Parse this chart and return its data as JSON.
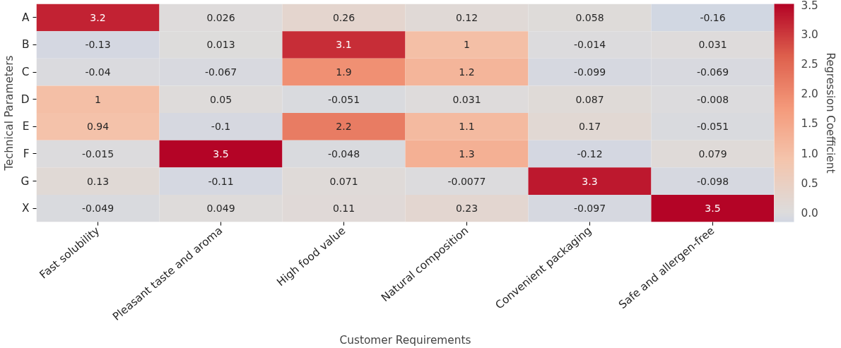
{
  "chart_data": {
    "type": "heatmap",
    "xlabel": "Customer Requirements",
    "ylabel": "Technical Parameters",
    "clabel": "Regression Coefficient",
    "categories": [
      "Fast solubility",
      "Pleasant taste and aroma",
      "High food value",
      "Natural composition",
      "Convenient packaging",
      "Safe and allergen-free"
    ],
    "y_categories": [
      "A",
      "B",
      "C",
      "D",
      "E",
      "F",
      "G",
      "X"
    ],
    "cells": [
      [
        3.2,
        0.026,
        0.26,
        0.12,
        0.058,
        -0.16
      ],
      [
        -0.13,
        0.013,
        3.1,
        1,
        -0.014,
        0.031
      ],
      [
        -0.04,
        -0.067,
        1.9,
        1.2,
        -0.099,
        -0.069
      ],
      [
        1,
        0.05,
        -0.051,
        0.031,
        0.087,
        -0.008
      ],
      [
        0.94,
        -0.1,
        2.2,
        1.1,
        0.17,
        -0.051
      ],
      [
        -0.015,
        3.5,
        -0.048,
        1.3,
        -0.12,
        0.079
      ],
      [
        0.13,
        -0.11,
        0.071,
        -0.0077,
        3.3,
        -0.098
      ],
      [
        -0.049,
        0.049,
        0.11,
        0.23,
        -0.097,
        3.5
      ]
    ],
    "clim": [
      -0.16,
      3.5
    ],
    "cticks": [
      {
        "value": 0,
        "label": "0.0"
      },
      {
        "value": 0.5,
        "label": "0.5"
      },
      {
        "value": 1,
        "label": "1.0"
      },
      {
        "value": 1.5,
        "label": "1.5"
      },
      {
        "value": 2,
        "label": "2.0"
      },
      {
        "value": 2.5,
        "label": "2.5"
      },
      {
        "value": 3,
        "label": "3.0"
      },
      {
        "value": 3.5,
        "label": "3.5"
      }
    ],
    "data_labels": true,
    "grid": false
  }
}
